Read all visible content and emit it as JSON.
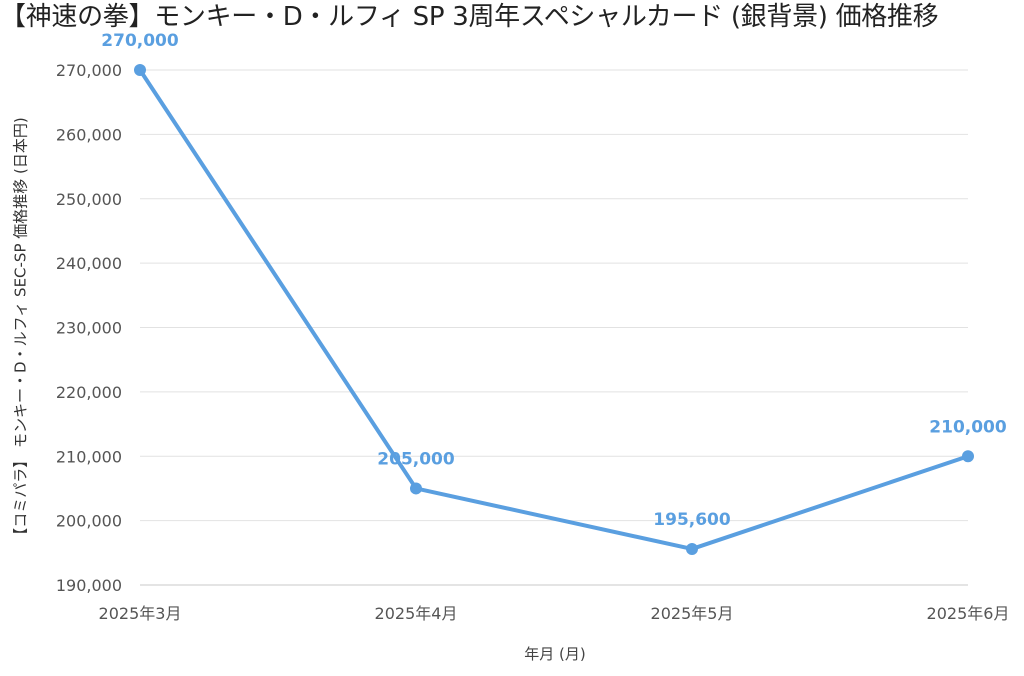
{
  "title": "【神速の拳】モンキー・D・ルフィ SP 3周年スペシャルカード (銀背景) 価格推移",
  "colors": {
    "line": "#5a9fe0",
    "grid": "#e2e2e2",
    "axis": "#c8c8c8",
    "tick_text": "#555555",
    "data_label": "#5a9fe0"
  },
  "chart_data": {
    "type": "line",
    "title": "【神速の拳】モンキー・D・ルフィ SP 3周年スペシャルカード (銀背景) 価格推移",
    "xlabel": "年月 (月)",
    "ylabel": "【コミパラ】 モンキー・D・ルフィ SEC-SP 価格推移 (日本円)",
    "categories": [
      "2025年3月",
      "2025年4月",
      "2025年5月",
      "2025年6月"
    ],
    "values": [
      270000,
      205000,
      195600,
      210000
    ],
    "data_labels": [
      "270,000",
      "205,000",
      "195,600",
      "210,000"
    ],
    "ylim": [
      190000,
      270000
    ],
    "yticks": [
      190000,
      200000,
      210000,
      220000,
      230000,
      240000,
      250000,
      260000,
      270000
    ],
    "ytick_labels": [
      "190,000",
      "200,000",
      "210,000",
      "220,000",
      "230,000",
      "240,000",
      "250,000",
      "260,000",
      "270,000"
    ],
    "grid": true,
    "legend": "none"
  }
}
